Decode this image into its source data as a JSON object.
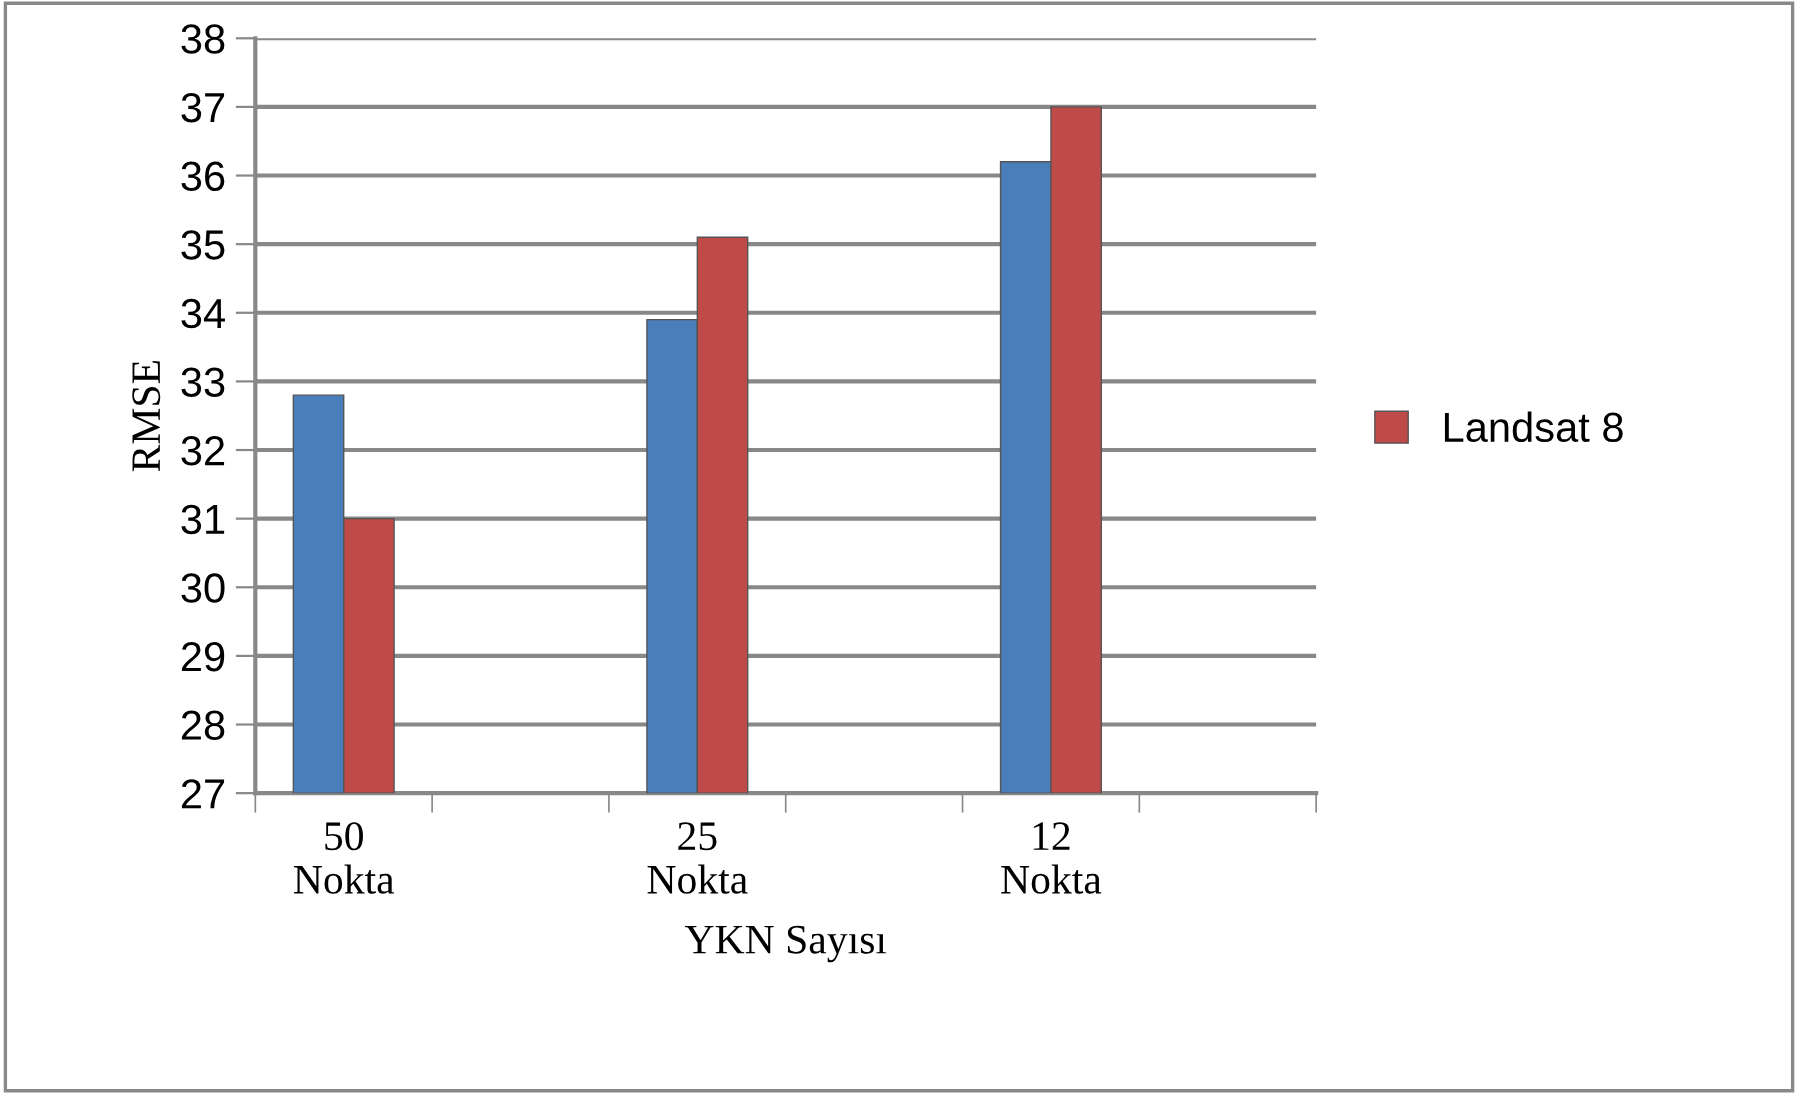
{
  "chart_data": {
    "type": "bar",
    "xlabel": "YKN Sayısı",
    "ylabel": "RMSE",
    "categories": [
      "50\nNokta",
      null,
      "25\nNokta",
      null,
      "12\nNokta",
      null
    ],
    "series": [
      {
        "color": "#4a7ebb",
        "values": [
          32.8,
          null,
          33.9,
          null,
          36.2,
          null
        ]
      },
      {
        "name": "Landsat 8",
        "color": "#be4b48",
        "values": [
          31.0,
          null,
          35.1,
          null,
          37.0,
          null
        ]
      }
    ],
    "ylim": [
      27,
      38
    ],
    "yticks": [
      27,
      28,
      29,
      30,
      31,
      32,
      33,
      34,
      35,
      36,
      37,
      38
    ],
    "grid": "y",
    "legend": "right"
  }
}
